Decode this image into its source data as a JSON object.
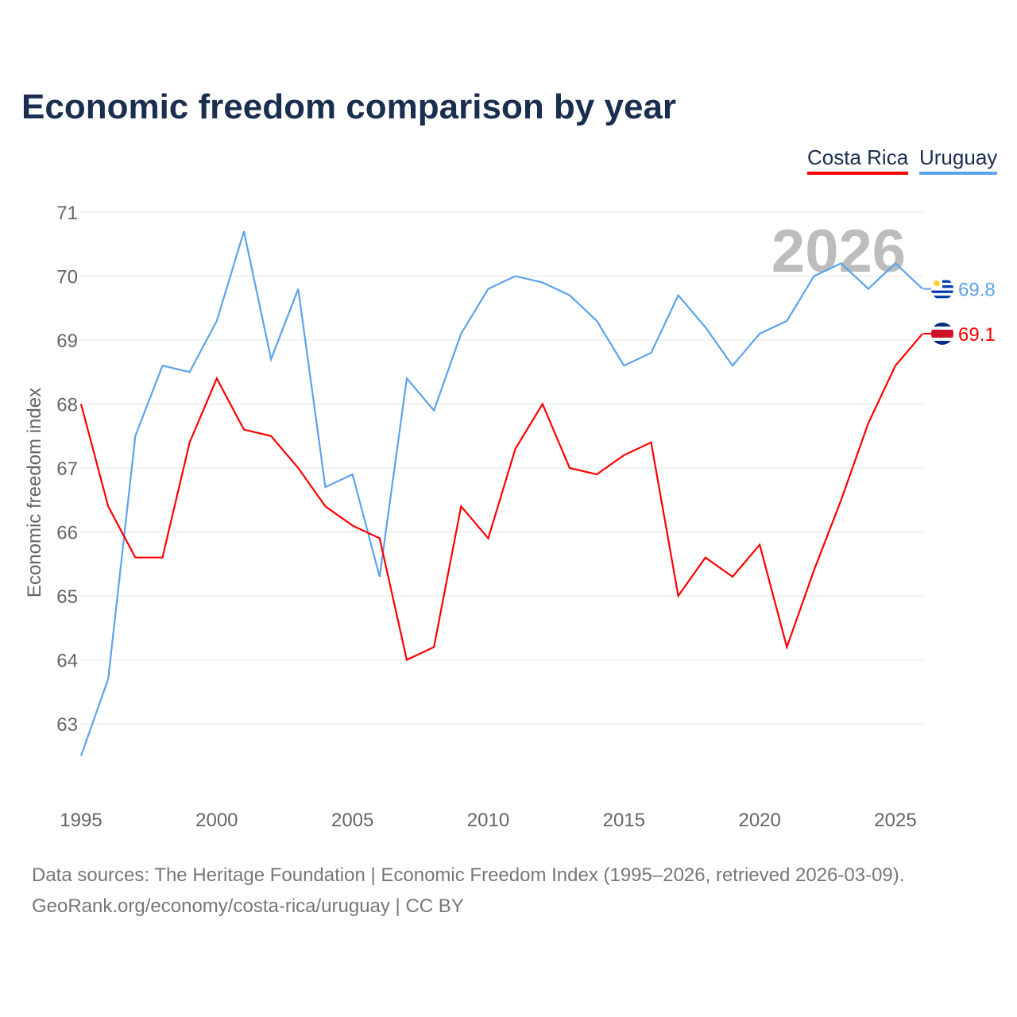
{
  "chart_data": {
    "type": "line",
    "title": "Economic freedom comparison by year",
    "xlabel": "",
    "ylabel": "Economic freedom index",
    "xlim": [
      1995,
      2026
    ],
    "ylim": [
      62,
      71
    ],
    "yticks": [
      63,
      64,
      65,
      66,
      67,
      68,
      69,
      70,
      71
    ],
    "xticks": [
      1995,
      2000,
      2005,
      2010,
      2015,
      2020,
      2025
    ],
    "grid": true,
    "legend_position": "top-right",
    "watermark_year": "2026",
    "x": [
      1995,
      1996,
      1997,
      1998,
      1999,
      2000,
      2001,
      2002,
      2003,
      2004,
      2005,
      2006,
      2007,
      2008,
      2009,
      2010,
      2011,
      2012,
      2013,
      2014,
      2015,
      2016,
      2017,
      2018,
      2019,
      2020,
      2021,
      2022,
      2023,
      2024,
      2025,
      2026
    ],
    "series": [
      {
        "name": "Costa Rica",
        "color": "#ff0000",
        "end_label": "69.1",
        "flag": "costa-rica-flag",
        "values": [
          68.0,
          66.4,
          65.6,
          65.6,
          67.4,
          68.4,
          67.6,
          67.5,
          67.0,
          66.4,
          66.1,
          65.9,
          64.0,
          64.2,
          66.4,
          65.9,
          67.3,
          68.0,
          67.0,
          66.9,
          67.2,
          67.4,
          65.0,
          65.6,
          65.3,
          65.8,
          64.2,
          65.4,
          66.5,
          67.7,
          68.6,
          69.1
        ]
      },
      {
        "name": "Uruguay",
        "color": "#5ba3ea",
        "end_label": "69.8",
        "flag": "uruguay-flag",
        "values": [
          62.5,
          63.7,
          67.5,
          68.6,
          68.5,
          69.3,
          70.7,
          68.7,
          69.8,
          66.7,
          66.9,
          65.3,
          68.4,
          67.9,
          69.1,
          69.8,
          70.0,
          69.9,
          69.7,
          69.3,
          68.6,
          68.8,
          69.7,
          69.2,
          68.6,
          69.1,
          69.3,
          70.0,
          70.2,
          69.8,
          70.2,
          69.8
        ]
      }
    ]
  },
  "footer": {
    "line1": "Data sources: The Heritage Foundation | Economic Freedom Index (1995–2026, retrieved 2026-03-09).",
    "line2": "GeoRank.org/economy/costa-rica/uruguay | CC BY"
  }
}
